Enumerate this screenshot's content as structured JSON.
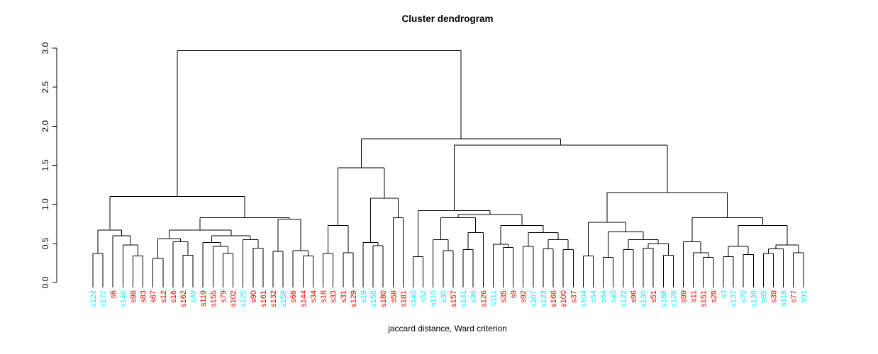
{
  "chart_data": {
    "type": "dendrogram",
    "title": "Cluster dendrogram",
    "xlabel": "jaccard distance, Ward criterion",
    "ylabel": "",
    "ylim": [
      0.0,
      3.0
    ],
    "yticks": [
      "0.0",
      "0.5",
      "1.0",
      "1.5",
      "2.0",
      "2.5",
      "3.0"
    ],
    "grid": false,
    "line_color": "#000000",
    "background_color": "#ffffff",
    "label_colors": {
      "red": "#ff0000",
      "cyan": "#00ffff"
    },
    "leaves": [
      {
        "label": "s124",
        "color": "cyan"
      },
      {
        "label": "s177",
        "color": "cyan"
      },
      {
        "label": "s6",
        "color": "red"
      },
      {
        "label": "s148",
        "color": "cyan"
      },
      {
        "label": "s98",
        "color": "red"
      },
      {
        "label": "s83",
        "color": "red"
      },
      {
        "label": "s67",
        "color": "red"
      },
      {
        "label": "s12",
        "color": "red"
      },
      {
        "label": "s16",
        "color": "red"
      },
      {
        "label": "s162",
        "color": "red"
      },
      {
        "label": "s49",
        "color": "cyan"
      },
      {
        "label": "s119",
        "color": "red"
      },
      {
        "label": "s155",
        "color": "red"
      },
      {
        "label": "s79",
        "color": "red"
      },
      {
        "label": "s102",
        "color": "red"
      },
      {
        "label": "s125",
        "color": "cyan"
      },
      {
        "label": "s90",
        "color": "red"
      },
      {
        "label": "s161",
        "color": "red"
      },
      {
        "label": "s132",
        "color": "red"
      },
      {
        "label": "s159",
        "color": "cyan"
      },
      {
        "label": "s66",
        "color": "red"
      },
      {
        "label": "s144",
        "color": "red"
      },
      {
        "label": "s34",
        "color": "red"
      },
      {
        "label": "s18",
        "color": "red"
      },
      {
        "label": "s33",
        "color": "red"
      },
      {
        "label": "s31",
        "color": "red"
      },
      {
        "label": "s129",
        "color": "red"
      },
      {
        "label": "s19",
        "color": "cyan"
      },
      {
        "label": "s158",
        "color": "cyan"
      },
      {
        "label": "s180",
        "color": "red"
      },
      {
        "label": "s58",
        "color": "red"
      },
      {
        "label": "s181",
        "color": "red"
      },
      {
        "label": "s140",
        "color": "cyan"
      },
      {
        "label": "s52",
        "color": "cyan"
      },
      {
        "label": "s110",
        "color": "cyan"
      },
      {
        "label": "s30",
        "color": "cyan"
      },
      {
        "label": "s157",
        "color": "red"
      },
      {
        "label": "s141",
        "color": "cyan"
      },
      {
        "label": "s36",
        "color": "cyan"
      },
      {
        "label": "s126",
        "color": "red"
      },
      {
        "label": "s111",
        "color": "cyan"
      },
      {
        "label": "s35",
        "color": "red"
      },
      {
        "label": "s9",
        "color": "red"
      },
      {
        "label": "s92",
        "color": "red"
      },
      {
        "label": "s107",
        "color": "cyan"
      },
      {
        "label": "s123",
        "color": "cyan"
      },
      {
        "label": "s166",
        "color": "red"
      },
      {
        "label": "s100",
        "color": "red"
      },
      {
        "label": "s37",
        "color": "red"
      },
      {
        "label": "s104",
        "color": "cyan"
      },
      {
        "label": "s54",
        "color": "cyan"
      },
      {
        "label": "s64",
        "color": "cyan"
      },
      {
        "label": "s40",
        "color": "cyan"
      },
      {
        "label": "s122",
        "color": "cyan"
      },
      {
        "label": "s96",
        "color": "red"
      },
      {
        "label": "s130",
        "color": "cyan"
      },
      {
        "label": "s51",
        "color": "red"
      },
      {
        "label": "s188",
        "color": "cyan"
      },
      {
        "label": "s128",
        "color": "cyan"
      },
      {
        "label": "s99",
        "color": "red"
      },
      {
        "label": "s11",
        "color": "red"
      },
      {
        "label": "s151",
        "color": "red"
      },
      {
        "label": "s28",
        "color": "red"
      },
      {
        "label": "s3",
        "color": "cyan"
      },
      {
        "label": "s137",
        "color": "cyan"
      },
      {
        "label": "s70",
        "color": "cyan"
      },
      {
        "label": "s139",
        "color": "cyan"
      },
      {
        "label": "s85",
        "color": "cyan"
      },
      {
        "label": "s39",
        "color": "red"
      },
      {
        "label": "s118",
        "color": "cyan"
      },
      {
        "label": "s77",
        "color": "red"
      },
      {
        "label": "s91",
        "color": "cyan"
      }
    ],
    "tree": {
      "h": 2.97,
      "c": [
        {
          "h": 1.1,
          "c": [
            {
              "h": 0.67,
              "c": [
                {
                  "h": 0.37,
                  "c": [
                    "s124",
                    "s177"
                  ]
                },
                {
                  "h": 0.6,
                  "c": [
                    "s6",
                    {
                      "h": 0.48,
                      "c": [
                        "s148",
                        {
                          "h": 0.34,
                          "c": [
                            "s98",
                            "s83"
                          ]
                        }
                      ]
                    }
                  ]
                }
              ]
            },
            {
              "h": 0.83,
              "c": [
                {
                  "h": 0.67,
                  "c": [
                    {
                      "h": 0.56,
                      "c": [
                        {
                          "h": 0.31,
                          "c": [
                            "s67",
                            "s12"
                          ]
                        },
                        {
                          "h": 0.52,
                          "c": [
                            "s16",
                            {
                              "h": 0.35,
                              "c": [
                                "s162",
                                "s49"
                              ]
                            }
                          ]
                        }
                      ]
                    },
                    {
                      "h": 0.6,
                      "c": [
                        {
                          "h": 0.51,
                          "c": [
                            "s119",
                            {
                              "h": 0.46,
                              "c": [
                                "s155",
                                {
                                  "h": 0.37,
                                  "c": [
                                    "s79",
                                    "s102"
                                  ]
                                }
                              ]
                            }
                          ]
                        },
                        {
                          "h": 0.55,
                          "c": [
                            "s125",
                            {
                              "h": 0.44,
                              "c": [
                                "s90",
                                "s161"
                              ]
                            }
                          ]
                        }
                      ]
                    }
                  ]
                },
                {
                  "h": 0.81,
                  "c": [
                    {
                      "h": 0.4,
                      "c": [
                        "s132",
                        "s159"
                      ]
                    },
                    {
                      "h": 0.41,
                      "c": [
                        "s66",
                        {
                          "h": 0.34,
                          "c": [
                            "s144",
                            "s34"
                          ]
                        }
                      ]
                    }
                  ]
                }
              ]
            }
          ]
        },
        {
          "h": 1.84,
          "c": [
            {
              "h": 1.47,
              "c": [
                {
                  "h": 0.73,
                  "c": [
                    {
                      "h": 0.37,
                      "c": [
                        "s18",
                        "s33"
                      ]
                    },
                    {
                      "h": 0.38,
                      "c": [
                        "s31",
                        "s129"
                      ]
                    }
                  ]
                },
                {
                  "h": 1.08,
                  "c": [
                    {
                      "h": 0.51,
                      "c": [
                        "s19",
                        {
                          "h": 0.47,
                          "c": [
                            "s158",
                            "s180"
                          ]
                        }
                      ]
                    },
                    {
                      "h": 0.83,
                      "c": [
                        "s58",
                        "s181"
                      ]
                    }
                  ]
                }
              ]
            },
            {
              "h": 1.76,
              "c": [
                {
                  "h": 0.92,
                  "c": [
                    {
                      "h": 0.33,
                      "c": [
                        "s140",
                        "s52"
                      ]
                    },
                    {
                      "h": 0.87,
                      "c": [
                        {
                          "h": 0.83,
                          "c": [
                            {
                              "h": 0.55,
                              "c": [
                                "s110",
                                {
                                  "h": 0.41,
                                  "c": [
                                    "s30",
                                    "s157"
                                  ]
                                }
                              ]
                            },
                            {
                              "h": 0.64,
                              "c": [
                                {
                                  "h": 0.42,
                                  "c": [
                                    "s141",
                                    "s36"
                                  ]
                                },
                                "s126"
                              ]
                            }
                          ]
                        },
                        {
                          "h": 0.73,
                          "c": [
                            {
                              "h": 0.49,
                              "c": [
                                "s111",
                                {
                                  "h": 0.45,
                                  "c": [
                                    "s35",
                                    "s9"
                                  ]
                                }
                              ]
                            },
                            {
                              "h": 0.64,
                              "c": [
                                {
                                  "h": 0.46,
                                  "c": [
                                    "s92",
                                    "s107"
                                  ]
                                },
                                {
                                  "h": 0.55,
                                  "c": [
                                    {
                                      "h": 0.43,
                                      "c": [
                                        "s123",
                                        "s166"
                                      ]
                                    },
                                    {
                                      "h": 0.42,
                                      "c": [
                                        "s100",
                                        "s37"
                                      ]
                                    }
                                  ]
                                }
                              ]
                            }
                          ]
                        }
                      ]
                    }
                  ]
                },
                {
                  "h": 1.15,
                  "c": [
                    {
                      "h": 0.77,
                      "c": [
                        {
                          "h": 0.34,
                          "c": [
                            "s104",
                            "s54"
                          ]
                        },
                        {
                          "h": 0.65,
                          "c": [
                            {
                              "h": 0.32,
                              "c": [
                                "s64",
                                "s40"
                              ]
                            },
                            {
                              "h": 0.55,
                              "c": [
                                {
                                  "h": 0.42,
                                  "c": [
                                    "s122",
                                    "s96"
                                  ]
                                },
                                {
                                  "h": 0.5,
                                  "c": [
                                    {
                                      "h": 0.44,
                                      "c": [
                                        "s130",
                                        "s51"
                                      ]
                                    },
                                    {
                                      "h": 0.35,
                                      "c": [
                                        "s188",
                                        "s128"
                                      ]
                                    }
                                  ]
                                }
                              ]
                            }
                          ]
                        }
                      ]
                    },
                    {
                      "h": 0.83,
                      "c": [
                        {
                          "h": 0.52,
                          "c": [
                            "s99",
                            {
                              "h": 0.38,
                              "c": [
                                "s11",
                                {
                                  "h": 0.32,
                                  "c": [
                                    "s151",
                                    "s28"
                                  ]
                                }
                              ]
                            }
                          ]
                        },
                        {
                          "h": 0.73,
                          "c": [
                            {
                              "h": 0.46,
                              "c": [
                                {
                                  "h": 0.33,
                                  "c": [
                                    "s3",
                                    "s137"
                                  ]
                                },
                                {
                                  "h": 0.36,
                                  "c": [
                                    "s70",
                                    "s139"
                                  ]
                                }
                              ]
                            },
                            {
                              "h": 0.48,
                              "c": [
                                {
                                  "h": 0.43,
                                  "c": [
                                    {
                                      "h": 0.37,
                                      "c": [
                                        "s85",
                                        "s39"
                                      ]
                                    },
                                    "s118"
                                  ]
                                },
                                {
                                  "h": 0.38,
                                  "c": [
                                    "s77",
                                    "s91"
                                  ]
                                }
                              ]
                            }
                          ]
                        }
                      ]
                    }
                  ]
                }
              ]
            }
          ]
        }
      ]
    }
  }
}
